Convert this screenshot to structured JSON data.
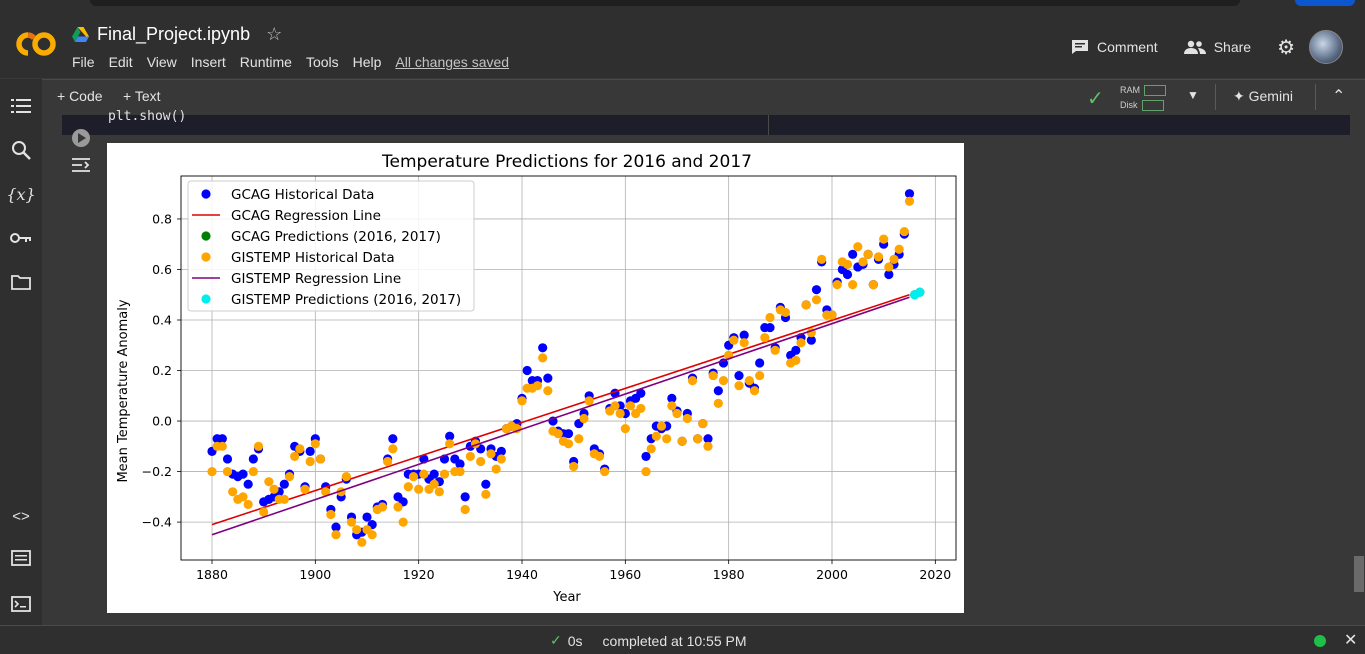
{
  "app": {
    "filename": "Final_Project.ipynb",
    "star_icon": "star-icon"
  },
  "menu": {
    "items": [
      "File",
      "Edit",
      "View",
      "Insert",
      "Runtime",
      "Tools",
      "Help"
    ],
    "saved": "All changes saved"
  },
  "header": {
    "comment": "Comment",
    "share": "Share"
  },
  "toolbar": {
    "code": "+ Code",
    "text": "+ Text",
    "ram": "RAM",
    "disk": "Disk",
    "gemini": "Gemini"
  },
  "cell": {
    "code_line": "plt.show()"
  },
  "status": {
    "elapsed": "0s",
    "completed": "completed at 10:55 PM"
  },
  "chart_data": {
    "type": "scatter",
    "title": "Temperature Predictions for 2016 and 2017",
    "xlabel": "Year",
    "ylabel": "Mean Temperature Anomaly",
    "xlim": [
      1874,
      2024
    ],
    "ylim": [
      -0.55,
      0.97
    ],
    "xticks": [
      1880,
      1900,
      1920,
      1940,
      1960,
      1980,
      2000,
      2020
    ],
    "yticks": [
      -0.4,
      -0.2,
      0.0,
      0.2,
      0.4,
      0.6,
      0.8
    ],
    "grid": true,
    "legend_position": "upper-left",
    "series": [
      {
        "name": "GCAG Historical Data",
        "kind": "scatter",
        "color": "#0000ff",
        "x": [
          1880,
          1881,
          1882,
          1883,
          1884,
          1885,
          1886,
          1887,
          1888,
          1889,
          1890,
          1891,
          1892,
          1893,
          1894,
          1895,
          1896,
          1897,
          1898,
          1899,
          1900,
          1901,
          1902,
          1903,
          1904,
          1905,
          1906,
          1907,
          1908,
          1909,
          1910,
          1911,
          1912,
          1913,
          1914,
          1915,
          1916,
          1917,
          1918,
          1919,
          1920,
          1921,
          1922,
          1923,
          1924,
          1925,
          1926,
          1927,
          1928,
          1929,
          1930,
          1931,
          1932,
          1933,
          1934,
          1935,
          1936,
          1937,
          1938,
          1939,
          1940,
          1941,
          1942,
          1943,
          1944,
          1945,
          1946,
          1947,
          1948,
          1949,
          1950,
          1951,
          1952,
          1953,
          1954,
          1955,
          1956,
          1957,
          1958,
          1959,
          1960,
          1961,
          1962,
          1963,
          1964,
          1965,
          1966,
          1967,
          1968,
          1969,
          1970,
          1971,
          1972,
          1973,
          1974,
          1975,
          1976,
          1977,
          1978,
          1979,
          1980,
          1981,
          1982,
          1983,
          1984,
          1985,
          1986,
          1987,
          1988,
          1989,
          1990,
          1991,
          1992,
          1993,
          1994,
          1995,
          1996,
          1997,
          1998,
          1999,
          2000,
          2001,
          2002,
          2003,
          2004,
          2005,
          2006,
          2007,
          2008,
          2009,
          2010,
          2011,
          2012,
          2013,
          2014,
          2015
        ],
        "values": [
          -0.12,
          -0.07,
          -0.07,
          -0.15,
          -0.21,
          -0.22,
          -0.21,
          -0.25,
          -0.15,
          -0.11,
          -0.32,
          -0.31,
          -0.3,
          -0.28,
          -0.25,
          -0.21,
          -0.1,
          -0.12,
          -0.26,
          -0.12,
          -0.07,
          -0.15,
          -0.26,
          -0.35,
          -0.42,
          -0.3,
          -0.23,
          -0.38,
          -0.45,
          -0.44,
          -0.38,
          -0.41,
          -0.34,
          -0.33,
          -0.15,
          -0.07,
          -0.3,
          -0.32,
          -0.21,
          -0.21,
          -0.21,
          -0.15,
          -0.23,
          -0.21,
          -0.24,
          -0.15,
          -0.06,
          -0.15,
          -0.17,
          -0.3,
          -0.1,
          -0.08,
          -0.11,
          -0.25,
          -0.11,
          -0.14,
          -0.12,
          -0.03,
          -0.02,
          -0.01,
          0.09,
          0.2,
          0.16,
          0.16,
          0.29,
          0.17,
          0.0,
          -0.04,
          -0.05,
          -0.05,
          -0.16,
          -0.01,
          0.03,
          0.1,
          -0.11,
          -0.13,
          -0.19,
          0.05,
          0.11,
          0.06,
          0.03,
          0.08,
          0.09,
          0.11,
          -0.14,
          -0.07,
          -0.02,
          -0.03,
          -0.02,
          0.09,
          0.04,
          -0.08,
          0.03,
          0.17,
          -0.07,
          -0.01,
          -0.07,
          0.19,
          0.12,
          0.23,
          0.3,
          0.33,
          0.18,
          0.34,
          0.15,
          0.13,
          0.23,
          0.37,
          0.37,
          0.29,
          0.45,
          0.41,
          0.26,
          0.28,
          0.33,
          0.46,
          0.32,
          0.52,
          0.63,
          0.44,
          0.42,
          0.55,
          0.6,
          0.58,
          0.66,
          0.61,
          0.62,
          0.66,
          0.54,
          0.64,
          0.7,
          0.58,
          0.62,
          0.66,
          0.74,
          0.9
        ]
      },
      {
        "name": "GCAG Regression Line",
        "kind": "line",
        "color": "#e00000",
        "x": [
          1880,
          2015
        ],
        "values": [
          -0.41,
          0.5
        ]
      },
      {
        "name": "GCAG Predictions (2016, 2017)",
        "kind": "scatter",
        "color": "#008000",
        "x": [
          2016,
          2017
        ],
        "values": [
          0.5,
          0.51
        ]
      },
      {
        "name": "GISTEMP Historical Data",
        "kind": "scatter",
        "color": "#ffa500",
        "x": [
          1880,
          1881,
          1882,
          1883,
          1884,
          1885,
          1886,
          1887,
          1888,
          1889,
          1890,
          1891,
          1892,
          1893,
          1894,
          1895,
          1896,
          1897,
          1898,
          1899,
          1900,
          1901,
          1902,
          1903,
          1904,
          1905,
          1906,
          1907,
          1908,
          1909,
          1910,
          1911,
          1912,
          1913,
          1914,
          1915,
          1916,
          1917,
          1918,
          1919,
          1920,
          1921,
          1922,
          1923,
          1924,
          1925,
          1926,
          1927,
          1928,
          1929,
          1930,
          1931,
          1932,
          1933,
          1934,
          1935,
          1936,
          1937,
          1938,
          1939,
          1940,
          1941,
          1942,
          1943,
          1944,
          1945,
          1946,
          1947,
          1948,
          1949,
          1950,
          1951,
          1952,
          1953,
          1954,
          1955,
          1956,
          1957,
          1958,
          1959,
          1960,
          1961,
          1962,
          1963,
          1964,
          1965,
          1966,
          1967,
          1968,
          1969,
          1970,
          1971,
          1972,
          1973,
          1974,
          1975,
          1976,
          1977,
          1978,
          1979,
          1980,
          1981,
          1982,
          1983,
          1984,
          1985,
          1986,
          1987,
          1988,
          1989,
          1990,
          1991,
          1992,
          1993,
          1994,
          1995,
          1996,
          1997,
          1998,
          1999,
          2000,
          2001,
          2002,
          2003,
          2004,
          2005,
          2006,
          2007,
          2008,
          2009,
          2010,
          2011,
          2012,
          2013,
          2014,
          2015
        ],
        "values": [
          -0.2,
          -0.1,
          -0.1,
          -0.2,
          -0.28,
          -0.31,
          -0.3,
          -0.33,
          -0.2,
          -0.1,
          -0.36,
          -0.24,
          -0.27,
          -0.31,
          -0.31,
          -0.22,
          -0.14,
          -0.11,
          -0.27,
          -0.16,
          -0.09,
          -0.15,
          -0.28,
          -0.37,
          -0.45,
          -0.28,
          -0.22,
          -0.4,
          -0.43,
          -0.48,
          -0.43,
          -0.45,
          -0.35,
          -0.34,
          -0.16,
          -0.11,
          -0.34,
          -0.4,
          -0.26,
          -0.22,
          -0.27,
          -0.21,
          -0.27,
          -0.25,
          -0.28,
          -0.21,
          -0.09,
          -0.2,
          -0.2,
          -0.35,
          -0.14,
          -0.09,
          -0.16,
          -0.29,
          -0.13,
          -0.19,
          -0.15,
          -0.03,
          -0.02,
          -0.03,
          0.08,
          0.13,
          0.13,
          0.14,
          0.25,
          0.12,
          -0.04,
          -0.05,
          -0.08,
          -0.09,
          -0.18,
          -0.07,
          0.01,
          0.08,
          -0.13,
          -0.14,
          -0.2,
          0.04,
          0.06,
          0.03,
          -0.03,
          0.06,
          0.03,
          0.05,
          -0.2,
          -0.11,
          -0.06,
          -0.02,
          -0.07,
          0.06,
          0.03,
          -0.08,
          0.01,
          0.16,
          -0.07,
          -0.01,
          -0.1,
          0.18,
          0.07,
          0.16,
          0.26,
          0.32,
          0.14,
          0.31,
          0.16,
          0.12,
          0.18,
          0.33,
          0.41,
          0.28,
          0.44,
          0.43,
          0.23,
          0.24,
          0.31,
          0.46,
          0.35,
          0.48,
          0.64,
          0.42,
          0.42,
          0.54,
          0.63,
          0.62,
          0.54,
          0.69,
          0.63,
          0.66,
          0.54,
          0.65,
          0.72,
          0.61,
          0.64,
          0.68,
          0.75,
          0.87
        ]
      },
      {
        "name": "GISTEMP Regression Line",
        "kind": "line",
        "color": "#800080",
        "x": [
          1880,
          2015
        ],
        "values": [
          -0.45,
          0.49
        ]
      },
      {
        "name": "GISTEMP Predictions (2016, 2017)",
        "kind": "scatter",
        "color": "#00eeee",
        "x": [
          2016,
          2017
        ],
        "values": [
          0.5,
          0.51
        ]
      }
    ]
  }
}
